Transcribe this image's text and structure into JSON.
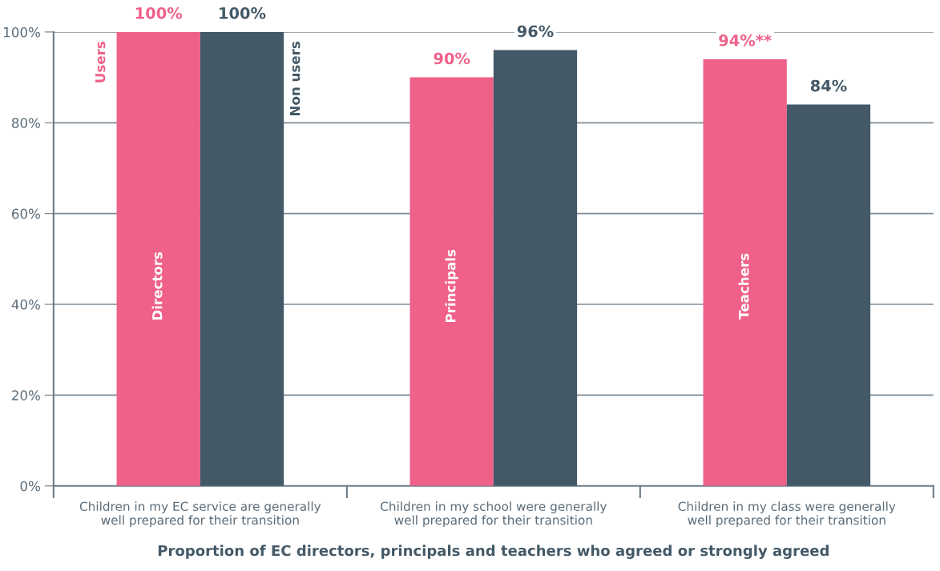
{
  "chart_data": {
    "type": "bar",
    "xlabel": "Proportion of EC directors, principals and teachers who agreed or strongly agreed",
    "categories": [
      "Children in my EC service are generally\nwell prepared for their transition",
      "Children in my school were generally\nwell prepared for their transition",
      "Children in my class were generally\nwell prepared for their transition"
    ],
    "series": [
      {
        "name": "Users",
        "color": "#ef6189",
        "values": [
          100,
          90,
          94
        ],
        "value_labels": [
          "100%",
          "90%",
          "94%**"
        ]
      },
      {
        "name": "Non users",
        "color": "#435968",
        "values": [
          100,
          96,
          84
        ],
        "value_labels": [
          "100%",
          "96%",
          "84%"
        ]
      }
    ],
    "annotations": [
      "Directors",
      "Principals",
      "Teachers"
    ],
    "ylim": [
      0,
      100
    ],
    "yticks": [
      {
        "value": 0,
        "label": "0%"
      },
      {
        "value": 20,
        "label": "20%"
      },
      {
        "value": 40,
        "label": "40%"
      },
      {
        "value": 60,
        "label": "60%"
      },
      {
        "value": 80,
        "label": "80%"
      },
      {
        "value": 100,
        "label": "100%"
      }
    ],
    "grid": "y",
    "legend": false
  }
}
